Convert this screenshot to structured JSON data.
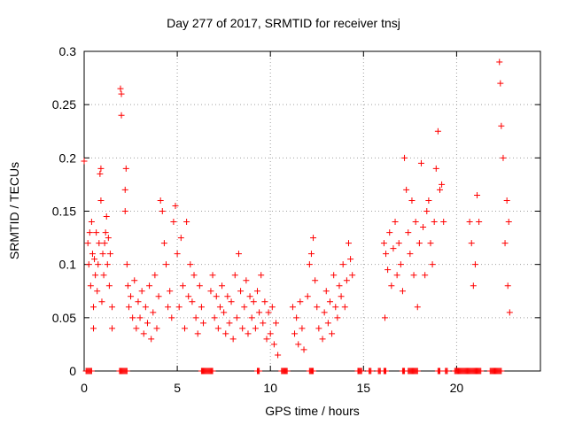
{
  "chart_data": {
    "type": "scatter",
    "title": "Day 277 of 2017, SRMTID for receiver tnsj",
    "xlabel": "GPS time / hours",
    "ylabel": "SRMTID / TECUs",
    "xlim": [
      0,
      24.5
    ],
    "ylim": [
      0,
      0.3
    ],
    "xticks": [
      0,
      5,
      10,
      15,
      20
    ],
    "yticks": [
      0,
      0.05,
      0.1,
      0.15,
      0.2,
      0.25,
      0.3
    ],
    "ytick_labels": [
      "0",
      "0.05",
      "0.1",
      "0.15",
      "0.2",
      "0.25",
      "0.3"
    ],
    "grid": true,
    "marker": "+",
    "color": "#ff0000",
    "series": [
      {
        "values": [
          [
            0.0,
            0.197
          ],
          [
            0.2,
            0.12
          ],
          [
            0.25,
            0.1
          ],
          [
            0.3,
            0.13
          ],
          [
            0.35,
            0.08
          ],
          [
            0.4,
            0.14
          ],
          [
            0.45,
            0.11
          ],
          [
            0.5,
            0.06
          ],
          [
            0.5,
            0.04
          ],
          [
            0.55,
            0.105
          ],
          [
            0.6,
            0.09
          ],
          [
            0.65,
            0.13
          ],
          [
            0.7,
            0.075
          ],
          [
            0.75,
            0.1
          ],
          [
            0.8,
            0.12
          ],
          [
            0.85,
            0.185
          ],
          [
            0.9,
            0.19
          ],
          [
            0.9,
            0.16
          ],
          [
            0.95,
            0.065
          ],
          [
            1.0,
            0.11
          ],
          [
            1.05,
            0.09
          ],
          [
            1.1,
            0.12
          ],
          [
            1.15,
            0.13
          ],
          [
            1.2,
            0.145
          ],
          [
            1.25,
            0.1
          ],
          [
            1.3,
            0.125
          ],
          [
            1.35,
            0.08
          ],
          [
            1.4,
            0.11
          ],
          [
            1.5,
            0.06
          ],
          [
            1.5,
            0.04
          ],
          [
            1.95,
            0.265
          ],
          [
            2.0,
            0.26
          ],
          [
            2.0,
            0.24
          ],
          [
            2.25,
            0.19
          ],
          [
            2.2,
            0.17
          ],
          [
            2.2,
            0.15
          ],
          [
            2.3,
            0.1
          ],
          [
            2.35,
            0.08
          ],
          [
            2.4,
            0.06
          ],
          [
            2.5,
            0.07
          ],
          [
            2.6,
            0.05
          ],
          [
            2.7,
            0.085
          ],
          [
            2.8,
            0.04
          ],
          [
            2.9,
            0.065
          ],
          [
            3.0,
            0.05
          ],
          [
            3.1,
            0.075
          ],
          [
            3.2,
            0.035
          ],
          [
            3.3,
            0.06
          ],
          [
            3.4,
            0.045
          ],
          [
            3.5,
            0.08
          ],
          [
            3.6,
            0.03
          ],
          [
            3.7,
            0.055
          ],
          [
            3.8,
            0.09
          ],
          [
            3.9,
            0.04
          ],
          [
            4.0,
            0.07
          ],
          [
            4.1,
            0.16
          ],
          [
            4.2,
            0.15
          ],
          [
            4.3,
            0.12
          ],
          [
            4.4,
            0.1
          ],
          [
            4.5,
            0.06
          ],
          [
            4.6,
            0.075
          ],
          [
            4.7,
            0.05
          ],
          [
            4.8,
            0.14
          ],
          [
            4.9,
            0.155
          ],
          [
            5.0,
            0.11
          ],
          [
            5.1,
            0.06
          ],
          [
            5.2,
            0.125
          ],
          [
            5.3,
            0.08
          ],
          [
            5.4,
            0.04
          ],
          [
            5.5,
            0.14
          ],
          [
            5.6,
            0.07
          ],
          [
            5.7,
            0.1
          ],
          [
            5.8,
            0.065
          ],
          [
            5.9,
            0.09
          ],
          [
            6.0,
            0.05
          ],
          [
            6.1,
            0.035
          ],
          [
            6.2,
            0.08
          ],
          [
            6.3,
            0.06
          ],
          [
            6.4,
            0.045
          ],
          [
            6.8,
            0.075
          ],
          [
            6.9,
            0.09
          ],
          [
            7.0,
            0.05
          ],
          [
            7.1,
            0.07
          ],
          [
            7.2,
            0.04
          ],
          [
            7.3,
            0.06
          ],
          [
            7.4,
            0.08
          ],
          [
            7.5,
            0.055
          ],
          [
            7.6,
            0.035
          ],
          [
            7.7,
            0.07
          ],
          [
            7.8,
            0.045
          ],
          [
            7.9,
            0.065
          ],
          [
            8.0,
            0.03
          ],
          [
            8.1,
            0.09
          ],
          [
            8.2,
            0.05
          ],
          [
            8.3,
            0.11
          ],
          [
            8.4,
            0.075
          ],
          [
            8.5,
            0.04
          ],
          [
            8.6,
            0.06
          ],
          [
            8.7,
            0.085
          ],
          [
            8.8,
            0.035
          ],
          [
            8.9,
            0.07
          ],
          [
            9.0,
            0.05
          ],
          [
            9.1,
            0.065
          ],
          [
            9.2,
            0.04
          ],
          [
            9.3,
            0.075
          ],
          [
            9.4,
            0.055
          ],
          [
            9.5,
            0.09
          ],
          [
            9.6,
            0.045
          ],
          [
            9.7,
            0.065
          ],
          [
            9.8,
            0.03
          ],
          [
            9.9,
            0.055
          ],
          [
            10.0,
            0.035
          ],
          [
            10.1,
            0.06
          ],
          [
            10.2,
            0.025
          ],
          [
            10.3,
            0.045
          ],
          [
            10.4,
            0.015
          ],
          [
            11.2,
            0.06
          ],
          [
            11.3,
            0.035
          ],
          [
            11.4,
            0.05
          ],
          [
            11.5,
            0.025
          ],
          [
            11.6,
            0.065
          ],
          [
            11.7,
            0.04
          ],
          [
            11.8,
            0.02
          ],
          [
            12.0,
            0.07
          ],
          [
            12.1,
            0.1
          ],
          [
            12.2,
            0.11
          ],
          [
            12.3,
            0.125
          ],
          [
            12.4,
            0.085
          ],
          [
            12.5,
            0.06
          ],
          [
            12.6,
            0.04
          ],
          [
            12.8,
            0.03
          ],
          [
            12.9,
            0.055
          ],
          [
            13.0,
            0.075
          ],
          [
            13.1,
            0.045
          ],
          [
            13.2,
            0.065
          ],
          [
            13.3,
            0.035
          ],
          [
            13.4,
            0.09
          ],
          [
            13.5,
            0.06
          ],
          [
            13.6,
            0.05
          ],
          [
            13.7,
            0.08
          ],
          [
            13.8,
            0.07
          ],
          [
            13.9,
            0.1
          ],
          [
            14.0,
            0.06
          ],
          [
            14.1,
            0.085
          ],
          [
            14.2,
            0.12
          ],
          [
            14.3,
            0.105
          ],
          [
            14.4,
            0.09
          ],
          [
            16.1,
            0.12
          ],
          [
            16.15,
            0.05
          ],
          [
            16.2,
            0.11
          ],
          [
            16.3,
            0.095
          ],
          [
            16.4,
            0.13
          ],
          [
            16.5,
            0.08
          ],
          [
            16.6,
            0.115
          ],
          [
            16.7,
            0.14
          ],
          [
            16.8,
            0.09
          ],
          [
            16.9,
            0.12
          ],
          [
            17.0,
            0.1
          ],
          [
            17.1,
            0.075
          ],
          [
            17.2,
            0.2
          ],
          [
            17.3,
            0.17
          ],
          [
            17.4,
            0.13
          ],
          [
            17.5,
            0.11
          ],
          [
            17.6,
            0.16
          ],
          [
            17.7,
            0.09
          ],
          [
            17.8,
            0.14
          ],
          [
            17.9,
            0.06
          ],
          [
            18.0,
            0.12
          ],
          [
            18.1,
            0.195
          ],
          [
            18.2,
            0.135
          ],
          [
            18.3,
            0.09
          ],
          [
            18.4,
            0.15
          ],
          [
            18.5,
            0.16
          ],
          [
            18.6,
            0.12
          ],
          [
            18.7,
            0.1
          ],
          [
            18.8,
            0.14
          ],
          [
            18.9,
            0.19
          ],
          [
            19.0,
            0.225
          ],
          [
            19.1,
            0.17
          ],
          [
            19.2,
            0.175
          ],
          [
            19.3,
            0.14
          ],
          [
            20.7,
            0.14
          ],
          [
            20.8,
            0.12
          ],
          [
            20.9,
            0.08
          ],
          [
            21.0,
            0.1
          ],
          [
            21.1,
            0.165
          ],
          [
            21.2,
            0.14
          ],
          [
            22.3,
            0.29
          ],
          [
            22.35,
            0.27
          ],
          [
            22.4,
            0.23
          ],
          [
            22.5,
            0.2
          ],
          [
            22.6,
            0.12
          ],
          [
            22.7,
            0.16
          ],
          [
            22.75,
            0.08
          ],
          [
            22.8,
            0.14
          ],
          [
            22.85,
            0.055
          ]
        ]
      }
    ],
    "zero_ranges": [
      [
        0.1,
        0.4
      ],
      [
        1.9,
        2.3
      ],
      [
        6.3,
        6.9
      ],
      [
        9.3,
        9.4
      ],
      [
        10.6,
        10.9
      ],
      [
        12.1,
        12.3
      ],
      [
        14.7,
        14.9
      ],
      [
        15.3,
        15.4
      ],
      [
        15.8,
        15.9
      ],
      [
        16.1,
        16.2
      ],
      [
        17.1,
        17.2
      ],
      [
        17.4,
        17.9
      ],
      [
        19.0,
        19.1
      ],
      [
        19.4,
        19.5
      ],
      [
        19.9,
        21.3
      ],
      [
        21.8,
        22.4
      ]
    ]
  }
}
